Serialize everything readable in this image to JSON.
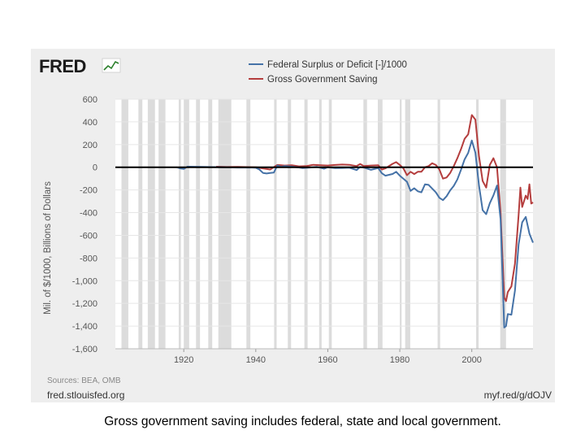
{
  "branding": {
    "logo_text": "FRED",
    "source_note": "Sources: BEA, OMB",
    "site": "fred.stlouisfed.org",
    "short_url": "myf.red/g/dOJV"
  },
  "caption": "Gross government saving includes federal, state and local government.",
  "chart_data": {
    "type": "line",
    "title": "",
    "xlabel": "",
    "ylabel": "Mil. of $/1000, Billions of Dollars",
    "xlim": [
      1901,
      2017
    ],
    "ylim": [
      -1600,
      600
    ],
    "y_ticks": [
      600,
      400,
      200,
      0,
      -200,
      -400,
      -600,
      -800,
      -1000,
      -1200,
      -1400,
      -1600
    ],
    "y_tick_labels": [
      "600",
      "400",
      "200",
      "0",
      "-200",
      "-400",
      "-600",
      "-800",
      "-1,000",
      "-1,200",
      "-1,400",
      "-1,600"
    ],
    "x_ticks": [
      1920,
      1940,
      1960,
      1980,
      2000
    ],
    "x_tick_labels": [
      "1920",
      "1940",
      "1960",
      "1980",
      "2000"
    ],
    "grid": true,
    "legend_position": "top",
    "recessions": [
      [
        1902.7,
        1904.6
      ],
      [
        1907.4,
        1908.5
      ],
      [
        1910,
        1912
      ],
      [
        1913,
        1914.9
      ],
      [
        1918.6,
        1919.2
      ],
      [
        1920,
        1921.5
      ],
      [
        1923.4,
        1924.5
      ],
      [
        1926.8,
        1927.9
      ],
      [
        1929.6,
        1933.2
      ],
      [
        1937.4,
        1938.5
      ],
      [
        1945.1,
        1945.8
      ],
      [
        1948.9,
        1949.8
      ],
      [
        1953.5,
        1954.4
      ],
      [
        1957.6,
        1958.3
      ],
      [
        1960.3,
        1961.1
      ],
      [
        1969.9,
        1970.9
      ],
      [
        1973.9,
        1975.2
      ],
      [
        1980,
        1980.5
      ],
      [
        1981.5,
        1982.9
      ],
      [
        1990.5,
        1991.2
      ],
      [
        2001.2,
        2001.9
      ],
      [
        2007.9,
        2009.5
      ]
    ],
    "series": [
      {
        "name": "Federal Surplus or Deficit [-]/1000",
        "color": "#4572a7",
        "x": [
          1918,
          1919,
          1920,
          1921,
          1925,
          1930,
          1935,
          1939,
          1940,
          1941,
          1942,
          1943,
          1944,
          1945,
          1946,
          1947,
          1948,
          1950,
          1952,
          1953,
          1955,
          1957,
          1959,
          1960,
          1962,
          1964,
          1966,
          1968,
          1969,
          1970,
          1972,
          1974,
          1975,
          1976,
          1978,
          1979,
          1980,
          1982,
          1983,
          1984,
          1985,
          1986,
          1987,
          1988,
          1990,
          1991,
          1992,
          1993,
          1994,
          1995,
          1996,
          1997,
          1998,
          1999,
          2000,
          2001,
          2002,
          2003,
          2004,
          2005,
          2006,
          2007,
          2008,
          2009,
          2009.5,
          2010,
          2011,
          2012,
          2013,
          2014,
          2015,
          2016,
          2017
        ],
        "values": [
          0,
          -10,
          -15,
          5,
          3,
          1,
          -3,
          -3,
          -5,
          -20,
          -50,
          -55,
          -50,
          -47,
          15,
          4,
          10,
          5,
          -2,
          -7,
          -3,
          3,
          -13,
          0,
          -7,
          -6,
          -4,
          -25,
          3,
          -3,
          -23,
          -6,
          -53,
          -74,
          -59,
          -40,
          -74,
          -128,
          -208,
          -185,
          -212,
          -221,
          -150,
          -155,
          -221,
          -269,
          -290,
          -255,
          -203,
          -164,
          -107,
          -22,
          69,
          126,
          236,
          128,
          -158,
          -378,
          -413,
          -318,
          -248,
          -161,
          -459,
          -1413,
          -1400,
          -1294,
          -1300,
          -1087,
          -680,
          -485,
          -438,
          -585,
          -665
        ]
      },
      {
        "name": "Gross Government Saving",
        "color": "#b43d3d",
        "x": [
          1929,
          1932,
          1935,
          1940,
          1944,
          1946,
          1948,
          1950,
          1952,
          1954,
          1956,
          1958,
          1960,
          1962,
          1964,
          1966,
          1968,
          1969,
          1970,
          1972,
          1974,
          1975,
          1976,
          1978,
          1979,
          1980,
          1981,
          1982,
          1983,
          1984,
          1985,
          1986,
          1987,
          1988,
          1989,
          1990,
          1991,
          1992,
          1993,
          1994,
          1995,
          1996,
          1997,
          1998,
          1999,
          2000,
          2001,
          2002,
          2003,
          2004,
          2005,
          2006,
          2007,
          2008,
          2009,
          2009.5,
          2010,
          2011,
          2012,
          2013,
          2013.5,
          2014,
          2015,
          2015.5,
          2016,
          2016.5,
          2017
        ],
        "values": [
          5,
          2,
          3,
          0,
          -20,
          20,
          15,
          18,
          8,
          10,
          22,
          18,
          15,
          20,
          24,
          22,
          10,
          28,
          10,
          15,
          18,
          -20,
          -10,
          30,
          45,
          20,
          -10,
          -70,
          -40,
          -60,
          -40,
          -40,
          0,
          10,
          35,
          20,
          -20,
          -100,
          -90,
          -50,
          10,
          80,
          160,
          250,
          290,
          460,
          420,
          100,
          -120,
          -180,
          20,
          80,
          0,
          -400,
          -1150,
          -1180,
          -1100,
          -1050,
          -850,
          -420,
          -180,
          -350,
          -250,
          -280,
          -150,
          -320,
          -310
        ]
      }
    ]
  }
}
